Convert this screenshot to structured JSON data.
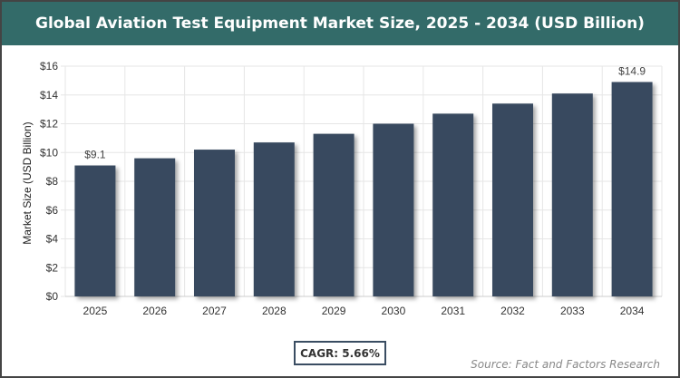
{
  "title": "Global Aviation Test Equipment Market Size, 2025 - 2034 (USD Billion)",
  "cagr_label": "CAGR: 5.66%",
  "source": "Source: Fact and Factors Research",
  "chart_data": {
    "type": "bar",
    "title": "Global Aviation Test Equipment Market Size, 2025 - 2034 (USD Billion)",
    "xlabel": "",
    "ylabel": "Market Size (USD Billion)",
    "ylim": [
      0,
      16
    ],
    "yticks": [
      0,
      2,
      4,
      6,
      8,
      10,
      12,
      14,
      16
    ],
    "ytick_labels": [
      "$0",
      "$2",
      "$4",
      "$6",
      "$8",
      "$10",
      "$12",
      "$14",
      "$16"
    ],
    "categories": [
      "2025",
      "2026",
      "2027",
      "2028",
      "2029",
      "2030",
      "2031",
      "2032",
      "2033",
      "2034"
    ],
    "values": [
      9.1,
      9.6,
      10.2,
      10.7,
      11.3,
      12.0,
      12.7,
      13.4,
      14.1,
      14.9
    ],
    "data_labels": {
      "0": "$9.1",
      "9": "$14.9"
    },
    "bar_color": "#374a5f",
    "grid": true
  }
}
